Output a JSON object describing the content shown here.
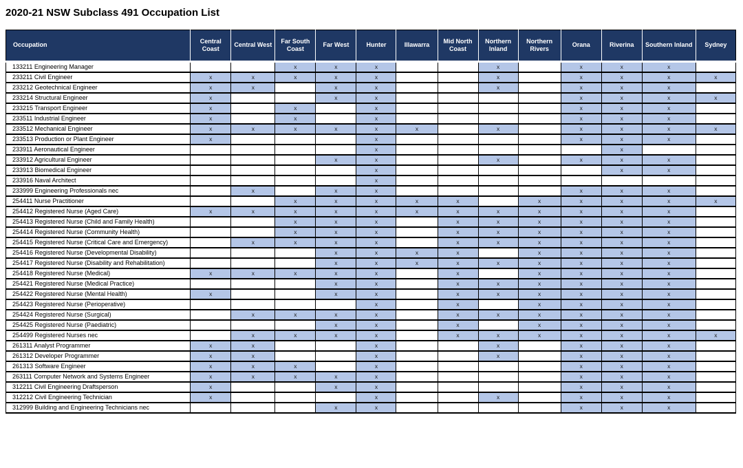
{
  "title": "2020-21 NSW Subclass 491 Occupation List",
  "colors": {
    "header_bg": "#1f3864",
    "header_text": "#ffffff",
    "marked_cell_bg": "#b4c6e7",
    "border": "#000000"
  },
  "table": {
    "occupation_header": "Occupation",
    "mark": "x",
    "columns": [
      "Central Coast",
      "Central West",
      "Far South Coast",
      "Far West",
      "Hunter",
      "Illawarra",
      "Mid North Coast",
      "Northern Inland",
      "Northern Rivers",
      "Orana",
      "Riverina",
      "Southern Inland",
      "Sydney"
    ],
    "rows": [
      {
        "occupation": "133211 Engineering Manager",
        "marks": [
          0,
          0,
          1,
          1,
          1,
          0,
          0,
          1,
          0,
          1,
          1,
          1,
          0
        ]
      },
      {
        "occupation": "233211 Civil Engineer",
        "marks": [
          1,
          1,
          1,
          1,
          1,
          0,
          0,
          1,
          0,
          1,
          1,
          1,
          1
        ]
      },
      {
        "occupation": "233212 Geotechnical Engineer",
        "marks": [
          1,
          1,
          0,
          1,
          1,
          0,
          0,
          1,
          0,
          1,
          1,
          1,
          0
        ]
      },
      {
        "occupation": "233214 Structural Engineer",
        "marks": [
          1,
          0,
          0,
          1,
          1,
          0,
          0,
          0,
          0,
          1,
          1,
          1,
          1
        ]
      },
      {
        "occupation": "233215 Transport Engineer",
        "marks": [
          1,
          0,
          1,
          0,
          1,
          0,
          0,
          0,
          0,
          1,
          1,
          1,
          0
        ]
      },
      {
        "occupation": "233511 Industrial Engineer",
        "marks": [
          1,
          0,
          1,
          0,
          1,
          0,
          0,
          0,
          0,
          1,
          1,
          1,
          0
        ]
      },
      {
        "occupation": "233512 Mechanical Engineer",
        "marks": [
          1,
          1,
          1,
          1,
          1,
          1,
          0,
          1,
          0,
          1,
          1,
          1,
          1
        ]
      },
      {
        "occupation": "233513 Production or Plant Engineer",
        "marks": [
          1,
          0,
          0,
          0,
          1,
          0,
          0,
          0,
          0,
          1,
          1,
          1,
          0
        ]
      },
      {
        "occupation": "233911 Aeronautical Engineer",
        "marks": [
          0,
          0,
          0,
          0,
          1,
          0,
          0,
          0,
          0,
          0,
          1,
          0,
          0
        ]
      },
      {
        "occupation": "233912 Agricultural Engineer",
        "marks": [
          0,
          0,
          0,
          1,
          1,
          0,
          0,
          1,
          0,
          1,
          1,
          1,
          0
        ]
      },
      {
        "occupation": "233913 Biomedical Engineer",
        "marks": [
          0,
          0,
          0,
          0,
          1,
          0,
          0,
          0,
          0,
          0,
          1,
          1,
          0
        ]
      },
      {
        "occupation": "233916 Naval Architect",
        "marks": [
          0,
          0,
          0,
          0,
          1,
          0,
          0,
          0,
          0,
          0,
          0,
          0,
          0
        ]
      },
      {
        "occupation": "233999 Engineering Professionals nec",
        "marks": [
          0,
          1,
          0,
          1,
          1,
          0,
          0,
          0,
          0,
          1,
          1,
          1,
          0
        ]
      },
      {
        "occupation": "254411 Nurse Practitioner",
        "marks": [
          0,
          0,
          1,
          1,
          1,
          1,
          1,
          0,
          1,
          1,
          1,
          1,
          1
        ]
      },
      {
        "occupation": "254412 Registered Nurse (Aged Care)",
        "marks": [
          1,
          1,
          1,
          1,
          1,
          1,
          1,
          1,
          1,
          1,
          1,
          1,
          0
        ]
      },
      {
        "occupation": "254413 Registered Nurse (Child and Family Health)",
        "marks": [
          0,
          0,
          1,
          1,
          1,
          0,
          1,
          1,
          1,
          1,
          1,
          1,
          0
        ]
      },
      {
        "occupation": "254414 Registered Nurse (Community Health)",
        "marks": [
          0,
          0,
          1,
          1,
          1,
          0,
          1,
          1,
          1,
          1,
          1,
          1,
          0
        ]
      },
      {
        "occupation": "254415 Registered Nurse (Critical Care and Emergency)",
        "marks": [
          0,
          1,
          1,
          1,
          1,
          0,
          1,
          1,
          1,
          1,
          1,
          1,
          0
        ]
      },
      {
        "occupation": "254416 Registered Nurse (Developmental Disability)",
        "marks": [
          0,
          0,
          0,
          1,
          1,
          1,
          1,
          0,
          1,
          1,
          1,
          1,
          0
        ]
      },
      {
        "occupation": "254417 Registered Nurse (Disability and Rehabilitation)",
        "marks": [
          0,
          0,
          0,
          1,
          1,
          1,
          1,
          1,
          1,
          1,
          1,
          1,
          0
        ]
      },
      {
        "occupation": "254418 Registered Nurse (Medical)",
        "marks": [
          1,
          1,
          1,
          1,
          1,
          0,
          1,
          0,
          1,
          1,
          1,
          1,
          0
        ]
      },
      {
        "occupation": "254421 Registered Nurse (Medical Practice)",
        "marks": [
          0,
          0,
          0,
          1,
          1,
          0,
          1,
          1,
          1,
          1,
          1,
          1,
          0
        ]
      },
      {
        "occupation": "254422 Registered Nurse (Mental Health)",
        "marks": [
          1,
          0,
          0,
          1,
          1,
          0,
          1,
          1,
          1,
          1,
          1,
          1,
          0
        ]
      },
      {
        "occupation": "254423 Registered Nurse (Perioperative)",
        "marks": [
          0,
          0,
          0,
          0,
          1,
          0,
          1,
          0,
          1,
          1,
          1,
          1,
          0
        ]
      },
      {
        "occupation": "254424 Registered Nurse (Surgical)",
        "marks": [
          0,
          1,
          1,
          1,
          1,
          0,
          1,
          1,
          1,
          1,
          1,
          1,
          0
        ]
      },
      {
        "occupation": "254425 Registered Nurse (Paediatric)",
        "marks": [
          0,
          0,
          0,
          1,
          1,
          0,
          1,
          0,
          1,
          1,
          1,
          1,
          0
        ]
      },
      {
        "occupation": "254499 Registered Nurses nec",
        "marks": [
          0,
          1,
          1,
          1,
          1,
          0,
          1,
          1,
          1,
          1,
          1,
          1,
          1
        ]
      },
      {
        "occupation": "261311 Analyst Programmer",
        "marks": [
          1,
          1,
          0,
          0,
          1,
          0,
          0,
          1,
          0,
          1,
          1,
          1,
          0
        ]
      },
      {
        "occupation": "261312 Developer Programmer",
        "marks": [
          1,
          1,
          0,
          0,
          1,
          0,
          0,
          1,
          0,
          1,
          1,
          1,
          0
        ]
      },
      {
        "occupation": "261313 Software Engineer",
        "marks": [
          1,
          1,
          1,
          0,
          1,
          0,
          0,
          0,
          0,
          1,
          1,
          1,
          0
        ]
      },
      {
        "occupation": "263111 Computer Network and Systems Engineer",
        "marks": [
          1,
          1,
          1,
          1,
          1,
          0,
          0,
          0,
          0,
          1,
          1,
          1,
          0
        ]
      },
      {
        "occupation": "312211 Civil Engineering Draftsperson",
        "marks": [
          1,
          0,
          0,
          1,
          1,
          0,
          0,
          0,
          0,
          1,
          1,
          1,
          0
        ]
      },
      {
        "occupation": "312212 Civil Engineering Technician",
        "marks": [
          1,
          0,
          0,
          0,
          1,
          0,
          0,
          1,
          0,
          1,
          1,
          1,
          0
        ]
      },
      {
        "occupation": "312999 Building and Engineering Technicians nec",
        "marks": [
          0,
          0,
          0,
          1,
          1,
          0,
          0,
          0,
          0,
          1,
          1,
          1,
          0
        ]
      }
    ]
  }
}
